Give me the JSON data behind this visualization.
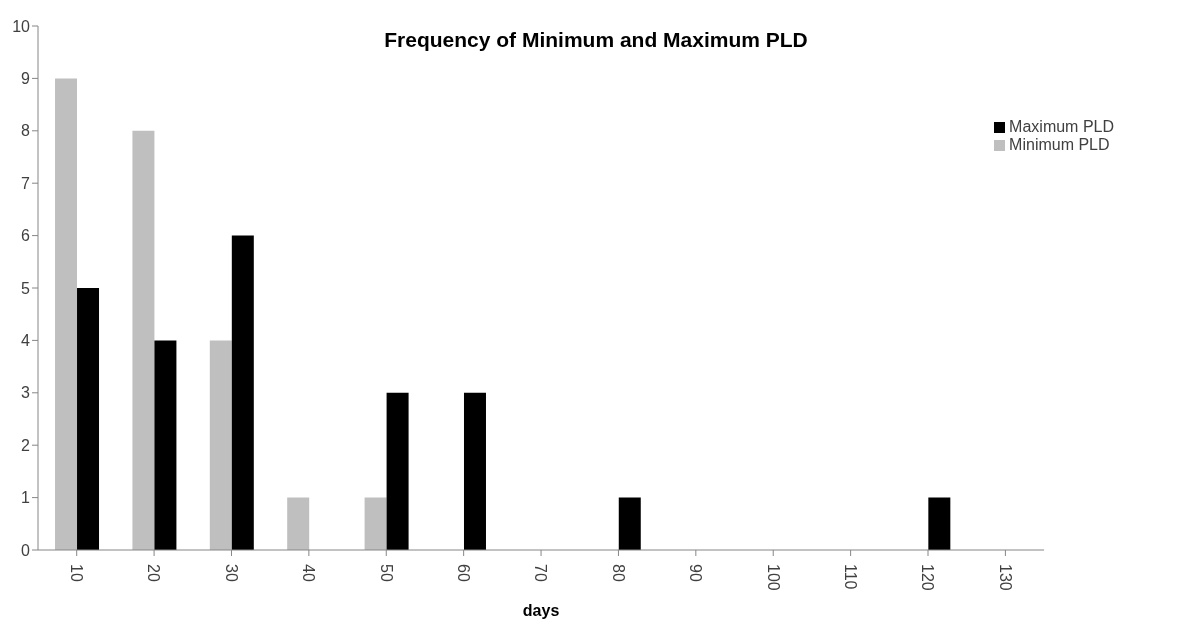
{
  "chart_data": {
    "type": "bar",
    "title": "Frequency of Minimum and Maximum PLD",
    "xlabel": "days",
    "categories": [
      "10",
      "20",
      "30",
      "40",
      "50",
      "60",
      "70",
      "80",
      "90",
      "100",
      "110",
      "120",
      "130"
    ],
    "series": [
      {
        "name": "Minimum PLD",
        "color": "#bfbfbf",
        "values": [
          9,
          8,
          4,
          1,
          1,
          0,
          0,
          0,
          0,
          0,
          0,
          0,
          0
        ]
      },
      {
        "name": "Maximum PLD",
        "color": "#000000",
        "values": [
          5,
          4,
          6,
          0,
          3,
          3,
          0,
          1,
          0,
          0,
          0,
          1,
          0
        ]
      }
    ],
    "ylim": [
      0,
      10
    ],
    "yticks": [
      0,
      1,
      2,
      3,
      4,
      5,
      6,
      7,
      8,
      9,
      10
    ],
    "grid": false,
    "legend": "top right"
  }
}
